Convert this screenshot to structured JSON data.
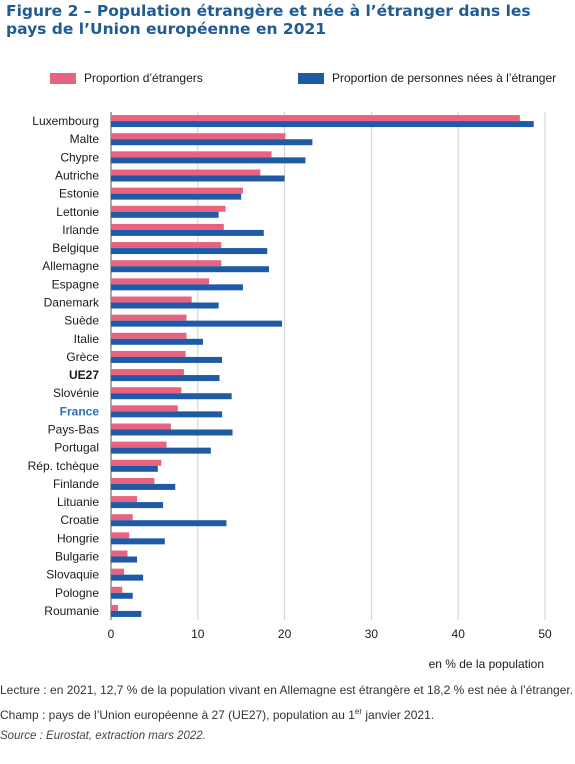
{
  "title": "Figure 2 – Population étrangère et née à l’étranger dans les pays de l’Union européenne en 2021",
  "legend": {
    "etrangers": "Proportion d’étrangers",
    "nes": "Proportion de personnes nées à l’étranger"
  },
  "colors": {
    "etrangers": "#e8637f",
    "nes": "#1f5aa6",
    "france_label": "#2f6fb5",
    "title": "#1f5b94"
  },
  "unit_label": "en % de la population",
  "notes": {
    "lecture": "Lecture : en 2021, 12,7 % de la population vivant en Allemagne est étrangère et 18,2 % est née à l’étranger.",
    "champ_before": "Champ : pays de l’Union européenne à 27 (UE27), population au 1",
    "champ_sup": "er",
    "champ_after": " janvier 2021.",
    "source": "Source : Eurostat, extraction mars 2022."
  },
  "chart_data": {
    "type": "bar",
    "orientation": "horizontal",
    "xlabel": "en % de la population",
    "xlim": [
      0,
      50
    ],
    "xticks": [
      0,
      10,
      20,
      30,
      40,
      50
    ],
    "grid": true,
    "legend_position": "top",
    "categories": [
      "Luxembourg",
      "Malte",
      "Chypre",
      "Autriche",
      "Estonie",
      "Lettonie",
      "Irlande",
      "Belgique",
      "Allemagne",
      "Espagne",
      "Danemark",
      "Suède",
      "Italie",
      "Grèce",
      "UE27",
      "Slovénie",
      "France",
      "Pays-Bas",
      "Portugal",
      "Rép. tchèque",
      "Finlande",
      "Lituanie",
      "Croatie",
      "Hongrie",
      "Bulgarie",
      "Slovaquie",
      "Pologne",
      "Roumanie"
    ],
    "highlight": {
      "bold": [
        "UE27",
        "France"
      ],
      "colored": [
        "France"
      ]
    },
    "series": [
      {
        "name": "Proportion d’étrangers",
        "color": "#e8637f",
        "values": [
          47.1,
          20.1,
          18.5,
          17.2,
          15.2,
          13.2,
          13.0,
          12.7,
          12.7,
          11.3,
          9.3,
          8.7,
          8.7,
          8.6,
          8.4,
          8.1,
          7.7,
          6.9,
          6.4,
          5.8,
          5.0,
          3.0,
          2.5,
          2.1,
          1.9,
          1.5,
          1.3,
          0.8
        ]
      },
      {
        "name": "Proportion de personnes nées à l’étranger",
        "color": "#1f5aa6",
        "values": [
          48.7,
          23.2,
          22.4,
          20.0,
          15.0,
          12.4,
          17.6,
          18.0,
          18.2,
          15.2,
          12.4,
          19.7,
          10.6,
          12.8,
          12.5,
          13.9,
          12.8,
          14.0,
          11.5,
          5.4,
          7.4,
          6.0,
          13.3,
          6.2,
          3.0,
          3.7,
          2.5,
          3.5
        ]
      }
    ]
  }
}
